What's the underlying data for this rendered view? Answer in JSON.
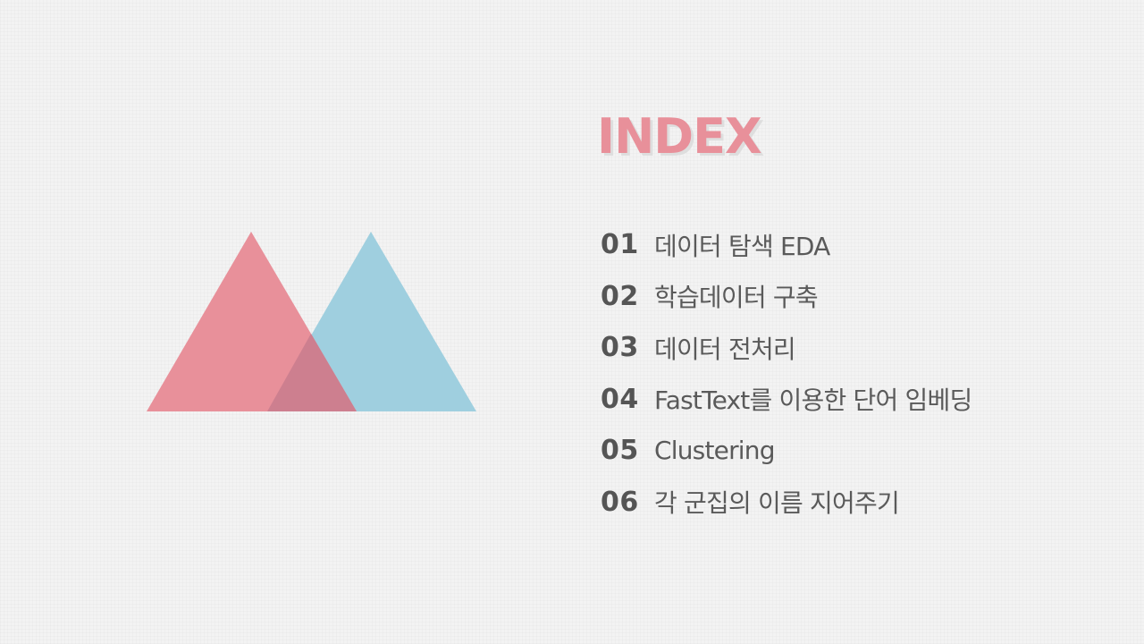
{
  "title": "INDEX",
  "colors": {
    "accent_pink": "#e8909a",
    "accent_blue": "#9fcfdf",
    "overlap": "#cd7f8f",
    "text": "#555555",
    "background": "#f3f3f3"
  },
  "items": [
    {
      "number": "01",
      "label": "데이터 탐색 EDA"
    },
    {
      "number": "02",
      "label": "학습데이터 구축"
    },
    {
      "number": "03",
      "label": "데이터 전처리"
    },
    {
      "number": "04",
      "label": "FastText를 이용한 단어 임베딩"
    },
    {
      "number": "05",
      "label": "Clustering"
    },
    {
      "number": "06",
      "label": "각 군집의 이름 지어주기"
    }
  ]
}
